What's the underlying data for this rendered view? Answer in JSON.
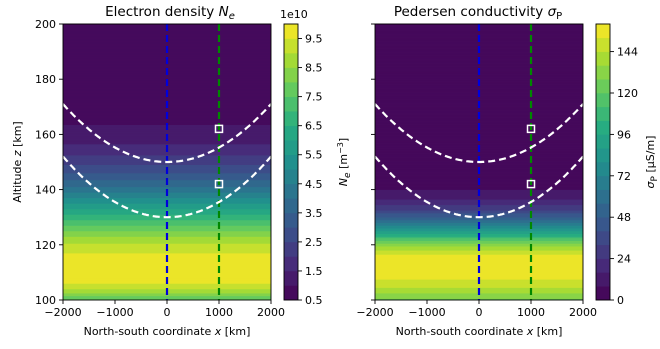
{
  "chart_data": [
    {
      "type": "heatmap",
      "title_main": "Electron density",
      "title_symbol": "N",
      "title_sub": "e",
      "xlabel_main": "North-south coordinate",
      "xlabel_var": "x",
      "xlabel_unit": "[km]",
      "ylabel_main": "Altitude",
      "ylabel_var": "z",
      "ylabel_unit": "[km]",
      "xlim": [
        -2000,
        2000
      ],
      "ylim": [
        100,
        200
      ],
      "xticks": [
        -2000,
        -1000,
        0,
        1000,
        2000
      ],
      "yticks": [
        100,
        120,
        140,
        160,
        180,
        200
      ],
      "xtick_labels": [
        "−2000",
        "−1000",
        "0",
        "1000",
        "2000"
      ],
      "ytick_labels": [
        "100",
        "120",
        "140",
        "160",
        "180",
        "200"
      ],
      "colorbar": {
        "min": 0.5,
        "max": 10,
        "levels": 19,
        "ticks": [
          0.5,
          1.5,
          2.5,
          3.5,
          4.5,
          5.5,
          6.5,
          7.5,
          8.5,
          9.5
        ],
        "tick_labels": [
          "0.5",
          "1.5",
          "2.5",
          "3.5",
          "4.5",
          "5.5",
          "6.5",
          "7.5",
          "8.5",
          "9.5"
        ],
        "multiplier_label": "1e10",
        "label_symbol": "N",
        "label_sub": "e",
        "label_unit": "[m",
        "label_unit_exp": "−3",
        "label_unit_close": "]"
      },
      "profile": {
        "peak_altitude": 110,
        "peak_value": 10,
        "bottom_value": 7.5,
        "top_value": 0.5,
        "decay_scale": 22
      },
      "field_lines": [
        {
          "apex_altitude": 150,
          "curvature": 5.25e-06
        },
        {
          "apex_altitude": 130,
          "curvature": 5.5e-06
        }
      ],
      "vertical_lines": [
        {
          "x": 0,
          "color": "#0000dd"
        },
        {
          "x": 1000,
          "color": "#008800"
        }
      ],
      "markers": [
        {
          "x": 1000,
          "z": 162
        },
        {
          "x": 1000,
          "z": 142
        }
      ]
    },
    {
      "type": "heatmap",
      "title_main": "Pedersen conductivity",
      "title_symbol": "σ",
      "title_sub": "P",
      "xlabel_main": "North-south coordinate",
      "xlabel_var": "x",
      "xlabel_unit": "[km]",
      "xlim": [
        -2000,
        2000
      ],
      "ylim": [
        100,
        200
      ],
      "xticks": [
        -2000,
        -1000,
        0,
        1000,
        2000
      ],
      "xtick_labels": [
        "−2000",
        "−1000",
        "0",
        "1000",
        "2000"
      ],
      "colorbar": {
        "min": 0,
        "max": 160,
        "levels": 20,
        "ticks": [
          0,
          24,
          48,
          72,
          96,
          120,
          144
        ],
        "tick_labels": [
          "0",
          "24",
          "48",
          "72",
          "96",
          "120",
          "144"
        ],
        "label_symbol": "σ",
        "label_sub": "P",
        "label_unit": "[μS/m]"
      },
      "profile": {
        "peak_altitude": 113,
        "peak_value": 160,
        "bottom_value": 125,
        "top_value": 0,
        "decay_scale": 11
      },
      "field_lines": [
        {
          "apex_altitude": 150,
          "curvature": 5.25e-06
        },
        {
          "apex_altitude": 130,
          "curvature": 5.5e-06
        }
      ],
      "vertical_lines": [
        {
          "x": 0,
          "color": "#0000dd"
        },
        {
          "x": 1000,
          "color": "#008800"
        }
      ],
      "markers": [
        {
          "x": 1000,
          "z": 162
        },
        {
          "x": 1000,
          "z": 142
        }
      ]
    }
  ]
}
